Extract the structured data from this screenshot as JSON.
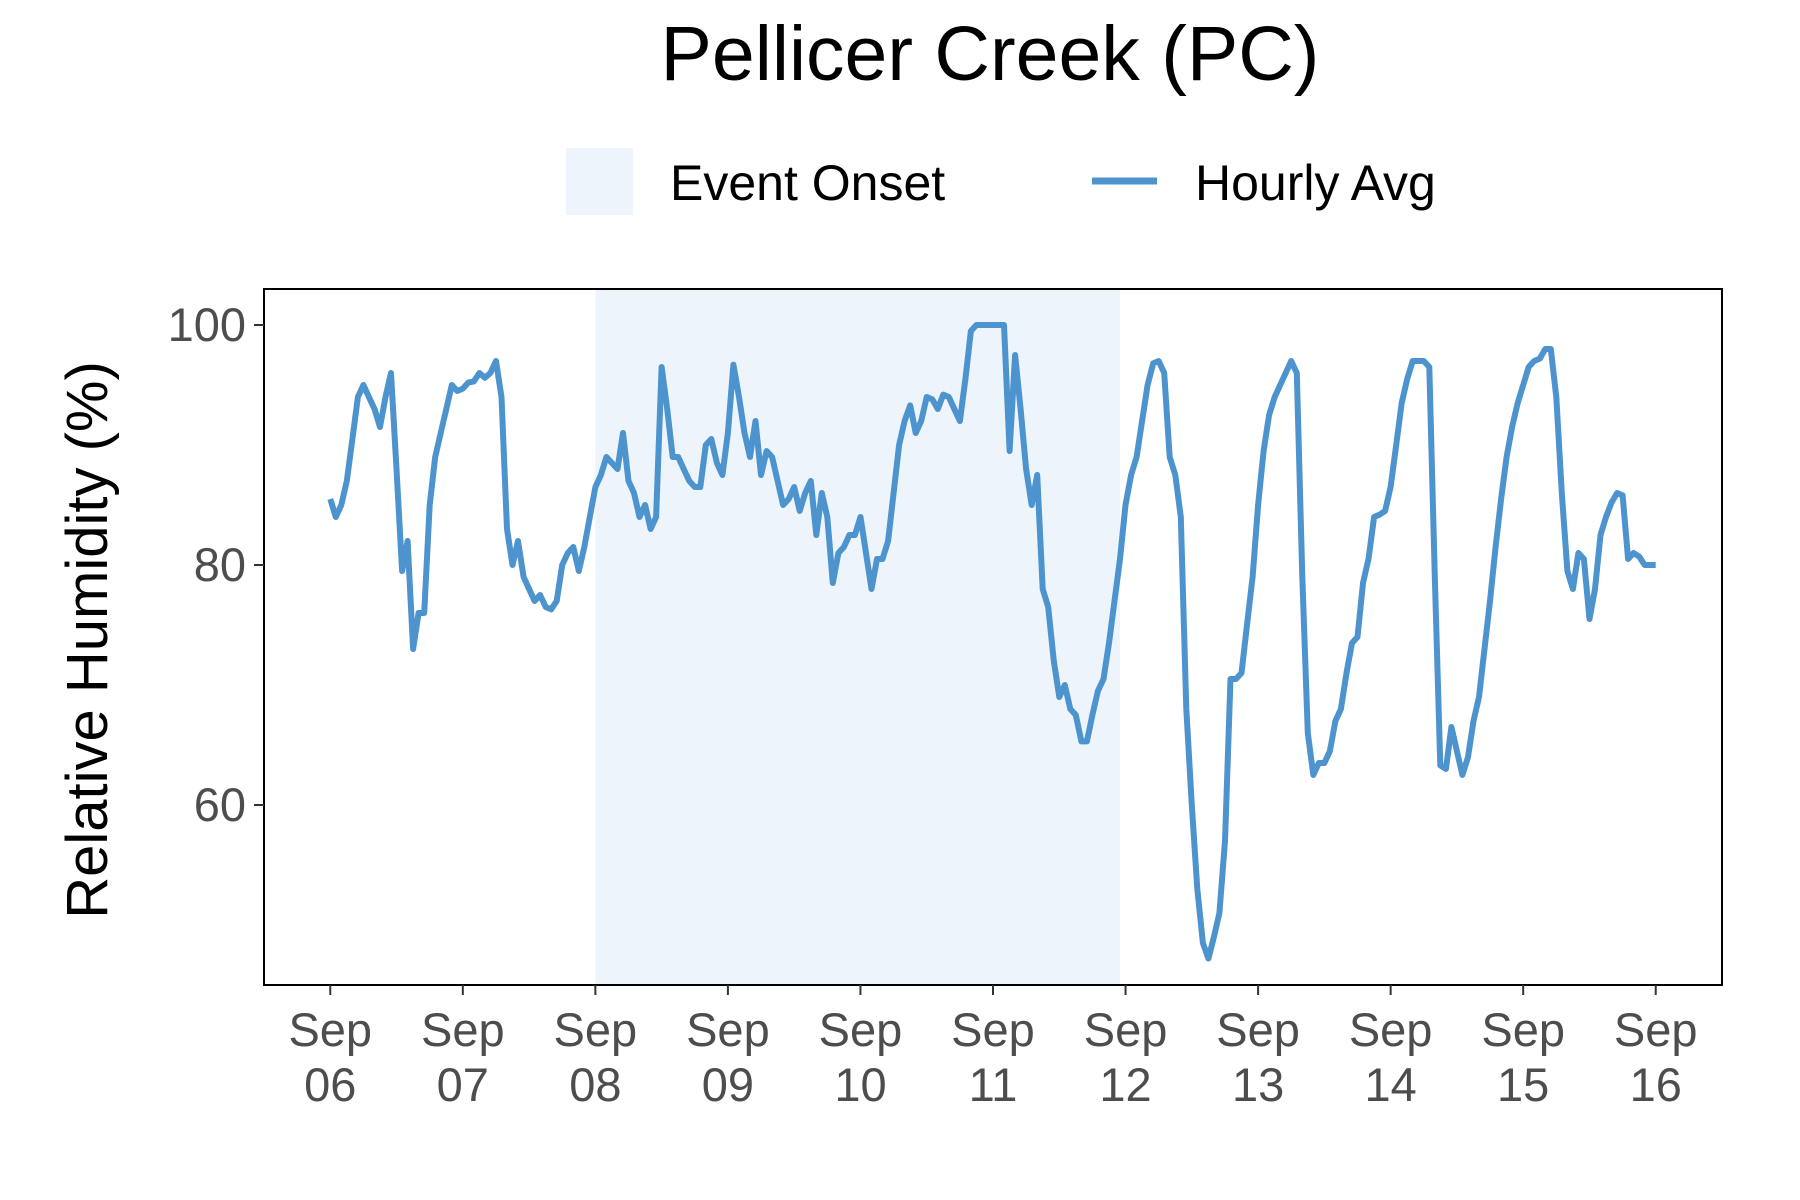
{
  "chart_data": {
    "type": "line",
    "title": "Pellicer Creek (PC)",
    "xlabel": "",
    "ylabel": "Relative Humidity (%)",
    "ylim": [
      45,
      103
    ],
    "xlim": [
      "2024-09-05 12:00",
      "2024-09-16 12:00"
    ],
    "yticks": [
      60,
      80,
      100
    ],
    "xticks": [
      {
        "date": "2024-09-06",
        "line1": "Sep",
        "line2": "06"
      },
      {
        "date": "2024-09-07",
        "line1": "Sep",
        "line2": "07"
      },
      {
        "date": "2024-09-08",
        "line1": "Sep",
        "line2": "08"
      },
      {
        "date": "2024-09-09",
        "line1": "Sep",
        "line2": "09"
      },
      {
        "date": "2024-09-10",
        "line1": "Sep",
        "line2": "10"
      },
      {
        "date": "2024-09-11",
        "line1": "Sep",
        "line2": "11"
      },
      {
        "date": "2024-09-12",
        "line1": "Sep",
        "line2": "12"
      },
      {
        "date": "2024-09-13",
        "line1": "Sep",
        "line2": "13"
      },
      {
        "date": "2024-09-14",
        "line1": "Sep",
        "line2": "14"
      },
      {
        "date": "2024-09-15",
        "line1": "Sep",
        "line2": "15"
      },
      {
        "date": "2024-09-16",
        "line1": "Sep",
        "line2": "16"
      }
    ],
    "grid": false,
    "legend": {
      "placement": "top",
      "items": [
        {
          "label": "Event Onset",
          "kind": "band",
          "color": "#edf4fb"
        },
        {
          "label": "Hourly Avg",
          "kind": "line",
          "color": "#4d94cf"
        }
      ]
    },
    "event_onset": {
      "start": "2024-09-08 00:00",
      "end": "2024-09-11 23:00",
      "color": "#edf4fb"
    },
    "series": [
      {
        "name": "Hourly Avg",
        "color": "#4d94cf",
        "points": [
          [
            "2024-09-06 00:00",
            85.5
          ],
          [
            "2024-09-06 01:00",
            84
          ],
          [
            "2024-09-06 02:00",
            85
          ],
          [
            "2024-09-06 03:00",
            87
          ],
          [
            "2024-09-06 04:00",
            90.5
          ],
          [
            "2024-09-06 05:00",
            94
          ],
          [
            "2024-09-06 06:00",
            95
          ],
          [
            "2024-09-06 07:00",
            94
          ],
          [
            "2024-09-06 08:00",
            93
          ],
          [
            "2024-09-06 09:00",
            91.5
          ],
          [
            "2024-09-06 10:00",
            94
          ],
          [
            "2024-09-06 11:00",
            96
          ],
          [
            "2024-09-06 12:00",
            88
          ],
          [
            "2024-09-06 13:00",
            79.5
          ],
          [
            "2024-09-06 14:00",
            82
          ],
          [
            "2024-09-06 15:00",
            73
          ],
          [
            "2024-09-06 16:00",
            76
          ],
          [
            "2024-09-06 17:00",
            76
          ],
          [
            "2024-09-06 18:00",
            85
          ],
          [
            "2024-09-06 19:00",
            89
          ],
          [
            "2024-09-06 20:00",
            91
          ],
          [
            "2024-09-06 21:00",
            93
          ],
          [
            "2024-09-06 22:00",
            95
          ],
          [
            "2024-09-06 23:00",
            94.5
          ],
          [
            "2024-09-07 00:00",
            94.7
          ],
          [
            "2024-09-07 01:00",
            95.2
          ],
          [
            "2024-09-07 02:00",
            95.3
          ],
          [
            "2024-09-07 03:00",
            96
          ],
          [
            "2024-09-07 04:00",
            95.6
          ],
          [
            "2024-09-07 05:00",
            96
          ],
          [
            "2024-09-07 06:00",
            97
          ],
          [
            "2024-09-07 07:00",
            94
          ],
          [
            "2024-09-07 08:00",
            83
          ],
          [
            "2024-09-07 09:00",
            80
          ],
          [
            "2024-09-07 10:00",
            82
          ],
          [
            "2024-09-07 11:00",
            79
          ],
          [
            "2024-09-07 12:00",
            78
          ],
          [
            "2024-09-07 13:00",
            77
          ],
          [
            "2024-09-07 14:00",
            77.5
          ],
          [
            "2024-09-07 15:00",
            76.5
          ],
          [
            "2024-09-07 16:00",
            76.3
          ],
          [
            "2024-09-07 17:00",
            77
          ],
          [
            "2024-09-07 18:00",
            80
          ],
          [
            "2024-09-07 19:00",
            81
          ],
          [
            "2024-09-07 20:00",
            81.5
          ],
          [
            "2024-09-07 21:00",
            79.5
          ],
          [
            "2024-09-07 22:00",
            81.5
          ],
          [
            "2024-09-07 23:00",
            84
          ],
          [
            "2024-09-08 00:00",
            86.5
          ],
          [
            "2024-09-08 01:00",
            87.5
          ],
          [
            "2024-09-08 02:00",
            89
          ],
          [
            "2024-09-08 03:00",
            88.5
          ],
          [
            "2024-09-08 04:00",
            88
          ],
          [
            "2024-09-08 05:00",
            91
          ],
          [
            "2024-09-08 06:00",
            87
          ],
          [
            "2024-09-08 07:00",
            86
          ],
          [
            "2024-09-08 08:00",
            84
          ],
          [
            "2024-09-08 09:00",
            85
          ],
          [
            "2024-09-08 10:00",
            83
          ],
          [
            "2024-09-08 11:00",
            84
          ],
          [
            "2024-09-08 12:00",
            96.5
          ],
          [
            "2024-09-08 13:00",
            93
          ],
          [
            "2024-09-08 14:00",
            89
          ],
          [
            "2024-09-08 15:00",
            89
          ],
          [
            "2024-09-08 16:00",
            88
          ],
          [
            "2024-09-08 17:00",
            87
          ],
          [
            "2024-09-08 18:00",
            86.5
          ],
          [
            "2024-09-08 19:00",
            86.5
          ],
          [
            "2024-09-08 20:00",
            90
          ],
          [
            "2024-09-08 21:00",
            90.5
          ],
          [
            "2024-09-08 22:00",
            88.5
          ],
          [
            "2024-09-08 23:00",
            87.5
          ],
          [
            "2024-09-09 00:00",
            91
          ],
          [
            "2024-09-09 01:00",
            96.7
          ],
          [
            "2024-09-09 02:00",
            94
          ],
          [
            "2024-09-09 03:00",
            91
          ],
          [
            "2024-09-09 04:00",
            89
          ],
          [
            "2024-09-09 05:00",
            92
          ],
          [
            "2024-09-09 06:00",
            87.5
          ],
          [
            "2024-09-09 07:00",
            89.5
          ],
          [
            "2024-09-09 08:00",
            89
          ],
          [
            "2024-09-09 09:00",
            87
          ],
          [
            "2024-09-09 10:00",
            85
          ],
          [
            "2024-09-09 11:00",
            85.5
          ],
          [
            "2024-09-09 12:00",
            86.5
          ],
          [
            "2024-09-09 13:00",
            84.5
          ],
          [
            "2024-09-09 14:00",
            86
          ],
          [
            "2024-09-09 15:00",
            87
          ],
          [
            "2024-09-09 16:00",
            82.5
          ],
          [
            "2024-09-09 17:00",
            86
          ],
          [
            "2024-09-09 18:00",
            84
          ],
          [
            "2024-09-09 19:00",
            78.5
          ],
          [
            "2024-09-09 20:00",
            81
          ],
          [
            "2024-09-09 21:00",
            81.5
          ],
          [
            "2024-09-09 22:00",
            82.5
          ],
          [
            "2024-09-09 23:00",
            82.5
          ],
          [
            "2024-09-10 00:00",
            84
          ],
          [
            "2024-09-10 01:00",
            81
          ],
          [
            "2024-09-10 02:00",
            78
          ],
          [
            "2024-09-10 03:00",
            80.5
          ],
          [
            "2024-09-10 04:00",
            80.5
          ],
          [
            "2024-09-10 05:00",
            82
          ],
          [
            "2024-09-10 06:00",
            86
          ],
          [
            "2024-09-10 07:00",
            90
          ],
          [
            "2024-09-10 08:00",
            92
          ],
          [
            "2024-09-10 09:00",
            93.3
          ],
          [
            "2024-09-10 10:00",
            91
          ],
          [
            "2024-09-10 11:00",
            92
          ],
          [
            "2024-09-10 12:00",
            94
          ],
          [
            "2024-09-10 13:00",
            93.8
          ],
          [
            "2024-09-10 14:00",
            93
          ],
          [
            "2024-09-10 15:00",
            94.2
          ],
          [
            "2024-09-10 16:00",
            94
          ],
          [
            "2024-09-10 17:00",
            93
          ],
          [
            "2024-09-10 18:00",
            92
          ],
          [
            "2024-09-10 19:00",
            95.5
          ],
          [
            "2024-09-10 20:00",
            99.5
          ],
          [
            "2024-09-10 21:00",
            100
          ],
          [
            "2024-09-10 22:00",
            100
          ],
          [
            "2024-09-10 23:00",
            100
          ],
          [
            "2024-09-11 00:00",
            100
          ],
          [
            "2024-09-11 01:00",
            100
          ],
          [
            "2024-09-11 02:00",
            100
          ],
          [
            "2024-09-11 03:00",
            89.5
          ],
          [
            "2024-09-11 04:00",
            97.5
          ],
          [
            "2024-09-11 05:00",
            93
          ],
          [
            "2024-09-11 06:00",
            88
          ],
          [
            "2024-09-11 07:00",
            85
          ],
          [
            "2024-09-11 08:00",
            87.5
          ],
          [
            "2024-09-11 09:00",
            78
          ],
          [
            "2024-09-11 10:00",
            76.5
          ],
          [
            "2024-09-11 11:00",
            72
          ],
          [
            "2024-09-11 12:00",
            69
          ],
          [
            "2024-09-11 13:00",
            70
          ],
          [
            "2024-09-11 14:00",
            68
          ],
          [
            "2024-09-11 15:00",
            67.5
          ],
          [
            "2024-09-11 16:00",
            65.3
          ],
          [
            "2024-09-11 17:00",
            65.3
          ],
          [
            "2024-09-11 18:00",
            67.5
          ],
          [
            "2024-09-11 19:00",
            69.5
          ],
          [
            "2024-09-11 20:00",
            70.5
          ],
          [
            "2024-09-11 21:00",
            73.5
          ],
          [
            "2024-09-11 22:00",
            77
          ],
          [
            "2024-09-11 23:00",
            80.5
          ],
          [
            "2024-09-12 00:00",
            85
          ],
          [
            "2024-09-12 01:00",
            87.5
          ],
          [
            "2024-09-12 02:00",
            89
          ],
          [
            "2024-09-12 03:00",
            92
          ],
          [
            "2024-09-12 04:00",
            95
          ],
          [
            "2024-09-12 05:00",
            96.8
          ],
          [
            "2024-09-12 06:00",
            97
          ],
          [
            "2024-09-12 07:00",
            96
          ],
          [
            "2024-09-12 08:00",
            89
          ],
          [
            "2024-09-12 09:00",
            87.5
          ],
          [
            "2024-09-12 10:00",
            84
          ],
          [
            "2024-09-12 11:00",
            68
          ],
          [
            "2024-09-12 12:00",
            60
          ],
          [
            "2024-09-12 13:00",
            53
          ],
          [
            "2024-09-12 14:00",
            48.5
          ],
          [
            "2024-09-12 15:00",
            47.2
          ],
          [
            "2024-09-12 16:00",
            49
          ],
          [
            "2024-09-12 17:00",
            51
          ],
          [
            "2024-09-12 18:00",
            57
          ],
          [
            "2024-09-12 19:00",
            70.5
          ],
          [
            "2024-09-12 20:00",
            70.5
          ],
          [
            "2024-09-12 21:00",
            71
          ],
          [
            "2024-09-12 22:00",
            75
          ],
          [
            "2024-09-12 23:00",
            79
          ],
          [
            "2024-09-13 00:00",
            85
          ],
          [
            "2024-09-13 01:00",
            89.5
          ],
          [
            "2024-09-13 02:00",
            92.5
          ],
          [
            "2024-09-13 03:00",
            94
          ],
          [
            "2024-09-13 04:00",
            95
          ],
          [
            "2024-09-13 05:00",
            96
          ],
          [
            "2024-09-13 06:00",
            97
          ],
          [
            "2024-09-13 07:00",
            96
          ],
          [
            "2024-09-13 08:00",
            79
          ],
          [
            "2024-09-13 09:00",
            66
          ],
          [
            "2024-09-13 10:00",
            62.5
          ],
          [
            "2024-09-13 11:00",
            63.5
          ],
          [
            "2024-09-13 12:00",
            63.5
          ],
          [
            "2024-09-13 13:00",
            64.5
          ],
          [
            "2024-09-13 14:00",
            67
          ],
          [
            "2024-09-13 15:00",
            68
          ],
          [
            "2024-09-13 16:00",
            71
          ],
          [
            "2024-09-13 17:00",
            73.5
          ],
          [
            "2024-09-13 18:00",
            74
          ],
          [
            "2024-09-13 19:00",
            78.5
          ],
          [
            "2024-09-13 20:00",
            80.5
          ],
          [
            "2024-09-13 21:00",
            84
          ],
          [
            "2024-09-13 22:00",
            84.2
          ],
          [
            "2024-09-13 23:00",
            84.5
          ],
          [
            "2024-09-14 00:00",
            86.5
          ],
          [
            "2024-09-14 01:00",
            90
          ],
          [
            "2024-09-14 02:00",
            93.5
          ],
          [
            "2024-09-14 03:00",
            95.5
          ],
          [
            "2024-09-14 04:00",
            97
          ],
          [
            "2024-09-14 05:00",
            97
          ],
          [
            "2024-09-14 06:00",
            97
          ],
          [
            "2024-09-14 07:00",
            96.5
          ],
          [
            "2024-09-14 08:00",
            79
          ],
          [
            "2024-09-14 09:00",
            63.3
          ],
          [
            "2024-09-14 10:00",
            63
          ],
          [
            "2024-09-14 11:00",
            66.5
          ],
          [
            "2024-09-14 12:00",
            64.5
          ],
          [
            "2024-09-14 13:00",
            62.5
          ],
          [
            "2024-09-14 14:00",
            64
          ],
          [
            "2024-09-14 15:00",
            67
          ],
          [
            "2024-09-14 16:00",
            69
          ],
          [
            "2024-09-14 17:00",
            73
          ],
          [
            "2024-09-14 18:00",
            77
          ],
          [
            "2024-09-14 19:00",
            81.5
          ],
          [
            "2024-09-14 20:00",
            85.5
          ],
          [
            "2024-09-14 21:00",
            89
          ],
          [
            "2024-09-14 22:00",
            91.5
          ],
          [
            "2024-09-14 23:00",
            93.5
          ],
          [
            "2024-09-15 00:00",
            95
          ],
          [
            "2024-09-15 01:00",
            96.5
          ],
          [
            "2024-09-15 02:00",
            97
          ],
          [
            "2024-09-15 03:00",
            97.2
          ],
          [
            "2024-09-15 04:00",
            98
          ],
          [
            "2024-09-15 05:00",
            98
          ],
          [
            "2024-09-15 06:00",
            94
          ],
          [
            "2024-09-15 07:00",
            86
          ],
          [
            "2024-09-15 08:00",
            79.5
          ],
          [
            "2024-09-15 09:00",
            78
          ],
          [
            "2024-09-15 10:00",
            81
          ],
          [
            "2024-09-15 11:00",
            80.5
          ],
          [
            "2024-09-15 12:00",
            75.5
          ],
          [
            "2024-09-15 13:00",
            78
          ],
          [
            "2024-09-15 14:00",
            82.5
          ],
          [
            "2024-09-15 15:00",
            84
          ],
          [
            "2024-09-15 16:00",
            85.2
          ],
          [
            "2024-09-15 17:00",
            86
          ],
          [
            "2024-09-15 18:00",
            85.8
          ],
          [
            "2024-09-15 19:00",
            80.5
          ],
          [
            "2024-09-15 20:00",
            81
          ],
          [
            "2024-09-15 21:00",
            80.7
          ],
          [
            "2024-09-15 22:00",
            80
          ],
          [
            "2024-09-16 00:00",
            80
          ]
        ]
      }
    ]
  }
}
